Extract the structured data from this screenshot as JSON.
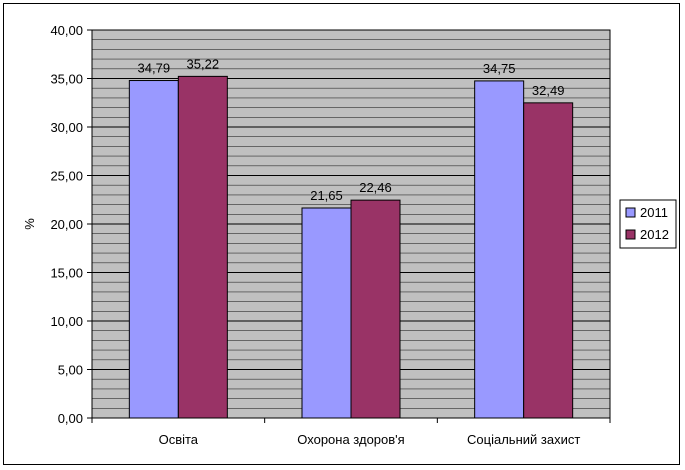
{
  "chart_data": {
    "type": "bar",
    "categories": [
      "Освіта",
      "Охорона здоров'я",
      "Соціальний захист"
    ],
    "series": [
      {
        "name": "2011",
        "color": "#9999FF",
        "values": [
          34.79,
          21.65,
          34.75
        ],
        "labels": [
          "34,79",
          "21,65",
          "34,75"
        ]
      },
      {
        "name": "2012",
        "color": "#993366",
        "values": [
          35.22,
          22.46,
          32.49
        ],
        "labels": [
          "35,22",
          "22,46",
          "32,49"
        ]
      }
    ],
    "ylabel": "%",
    "ylim": [
      0,
      40
    ],
    "ytick_step": 5,
    "yticks": [
      "0,00",
      "5,00",
      "10,00",
      "15,00",
      "20,00",
      "25,00",
      "30,00",
      "35,00",
      "40,00"
    ],
    "grid": true,
    "plot_background": "#C0C0C0",
    "legend_position": "right"
  }
}
